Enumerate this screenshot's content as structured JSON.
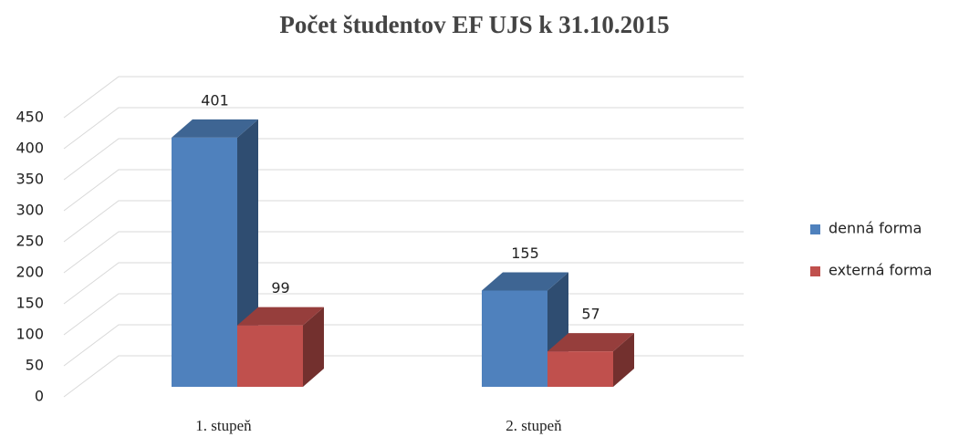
{
  "chart_data": {
    "type": "bar3d",
    "title": "Počet študentov EF UJS k 31.10.2015",
    "categories": [
      "1. stupeň",
      "2. stupeň"
    ],
    "series": [
      {
        "name": "denná forma",
        "color": "#4f81bd",
        "values": [
          401,
          155
        ]
      },
      {
        "name": "externá forma",
        "color": "#c0504d",
        "values": [
          99,
          57
        ]
      }
    ],
    "ylim": [
      0,
      450
    ],
    "yticks": [
      0,
      50,
      100,
      150,
      200,
      250,
      300,
      350,
      400,
      450
    ],
    "grid": true,
    "legend": "right"
  }
}
